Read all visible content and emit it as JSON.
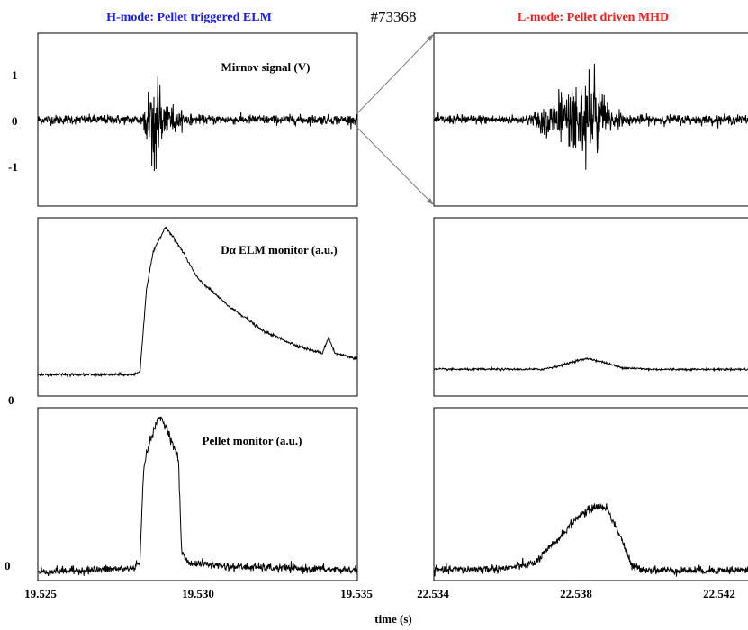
{
  "shot": "#73368",
  "left_title": "H-mode: Pellet triggered ELM",
  "right_title": "L-mode: Pellet driven MHD",
  "xlabel": "time (s)",
  "colors": {
    "left_title": "#1a1aff",
    "right_title": "#ff1a1a",
    "trace": "#000000",
    "axes": "#000000",
    "zoom_arrow": "#808080"
  },
  "panel_labels": {
    "mirnov": "Mirnov signal  (V)",
    "dalpha": "Dα ELM monitor (a.u.)",
    "pellet": "Pellet monitor (a.u.)"
  },
  "chart_data": [
    {
      "type": "line",
      "panel": "H-mode Mirnov signal",
      "title": "Mirnov signal  (V)",
      "x_range": [
        19.525,
        19.535
      ],
      "y_range": [
        -1.85,
        1.85
      ],
      "yticks": [
        1,
        0,
        -1
      ],
      "ytick_labels": [
        "1",
        "0",
        "-1"
      ],
      "noise_level": 0.05,
      "burst": {
        "x_start": 19.5282,
        "x_peak": 19.5286,
        "x_end": 19.53,
        "amplitude_max": 1.4,
        "amplitude_min": -1.8
      }
    },
    {
      "type": "line",
      "panel": "H-mode D-alpha ELM monitor",
      "title": "Dα ELM monitor (a.u.)",
      "x_range": [
        19.525,
        19.535
      ],
      "y_range": [
        0,
        1
      ],
      "ytick_labels": [
        "0"
      ],
      "points": [
        [
          19.525,
          0.12
        ],
        [
          19.528,
          0.12
        ],
        [
          19.5282,
          0.14
        ],
        [
          19.5284,
          0.6
        ],
        [
          19.5286,
          0.8
        ],
        [
          19.5288,
          0.88
        ],
        [
          19.529,
          0.95
        ],
        [
          19.5292,
          0.9
        ],
        [
          19.5295,
          0.82
        ],
        [
          19.53,
          0.66
        ],
        [
          19.5305,
          0.58
        ],
        [
          19.531,
          0.5
        ],
        [
          19.5315,
          0.44
        ],
        [
          19.532,
          0.37
        ],
        [
          19.5325,
          0.33
        ],
        [
          19.533,
          0.29
        ],
        [
          19.5335,
          0.26
        ],
        [
          19.5339,
          0.24
        ],
        [
          19.5341,
          0.33
        ],
        [
          19.5343,
          0.24
        ],
        [
          19.535,
          0.21
        ]
      ]
    },
    {
      "type": "line",
      "panel": "H-mode Pellet monitor",
      "title": "Pellet monitor (a.u.)",
      "x_range": [
        19.525,
        19.535
      ],
      "y_range": [
        0,
        1
      ],
      "ytick_labels": [
        "0"
      ],
      "xticks": [
        19.525,
        19.53,
        19.535
      ],
      "xtick_labels": [
        "19.525",
        "19.530",
        "19.535"
      ],
      "points": [
        [
          19.525,
          0.05
        ],
        [
          19.528,
          0.07
        ],
        [
          19.5282,
          0.12
        ],
        [
          19.5283,
          0.6
        ],
        [
          19.5284,
          0.75
        ],
        [
          19.5286,
          0.85
        ],
        [
          19.5288,
          0.95
        ],
        [
          19.529,
          0.9
        ],
        [
          19.5292,
          0.8
        ],
        [
          19.5294,
          0.7
        ],
        [
          19.5295,
          0.17
        ],
        [
          19.5297,
          0.1
        ],
        [
          19.53,
          0.1
        ],
        [
          19.531,
          0.08
        ],
        [
          19.535,
          0.06
        ]
      ]
    },
    {
      "type": "line",
      "panel": "L-mode Mirnov signal",
      "x_range": [
        22.534,
        22.543
      ],
      "noise_level": 0.05,
      "burst": {
        "x_start": 22.5365,
        "x_peak": 22.5385,
        "x_end": 22.5395,
        "amplitude_max": 1.5,
        "amplitude_min": -1.6
      }
    },
    {
      "type": "line",
      "panel": "L-mode D-alpha ELM monitor",
      "x_range": [
        22.534,
        22.543
      ],
      "y_range": [
        0,
        1
      ],
      "points": [
        [
          22.534,
          0.15
        ],
        [
          22.537,
          0.15
        ],
        [
          22.5375,
          0.17
        ],
        [
          22.538,
          0.2
        ],
        [
          22.5383,
          0.21
        ],
        [
          22.5387,
          0.19
        ],
        [
          22.5392,
          0.16
        ],
        [
          22.54,
          0.15
        ],
        [
          22.543,
          0.15
        ]
      ]
    },
    {
      "type": "line",
      "panel": "L-mode Pellet monitor",
      "x_range": [
        22.534,
        22.543
      ],
      "y_range": [
        0,
        1
      ],
      "xticks": [
        22.534,
        22.538,
        22.542
      ],
      "xtick_labels": [
        "22.534",
        "22.538",
        "22.542"
      ],
      "points": [
        [
          22.534,
          0.06
        ],
        [
          22.536,
          0.07
        ],
        [
          22.5368,
          0.1
        ],
        [
          22.5375,
          0.25
        ],
        [
          22.538,
          0.37
        ],
        [
          22.5385,
          0.43
        ],
        [
          22.5388,
          0.42
        ],
        [
          22.5392,
          0.25
        ],
        [
          22.5395,
          0.08
        ],
        [
          22.54,
          0.06
        ],
        [
          22.543,
          0.06
        ]
      ]
    }
  ]
}
